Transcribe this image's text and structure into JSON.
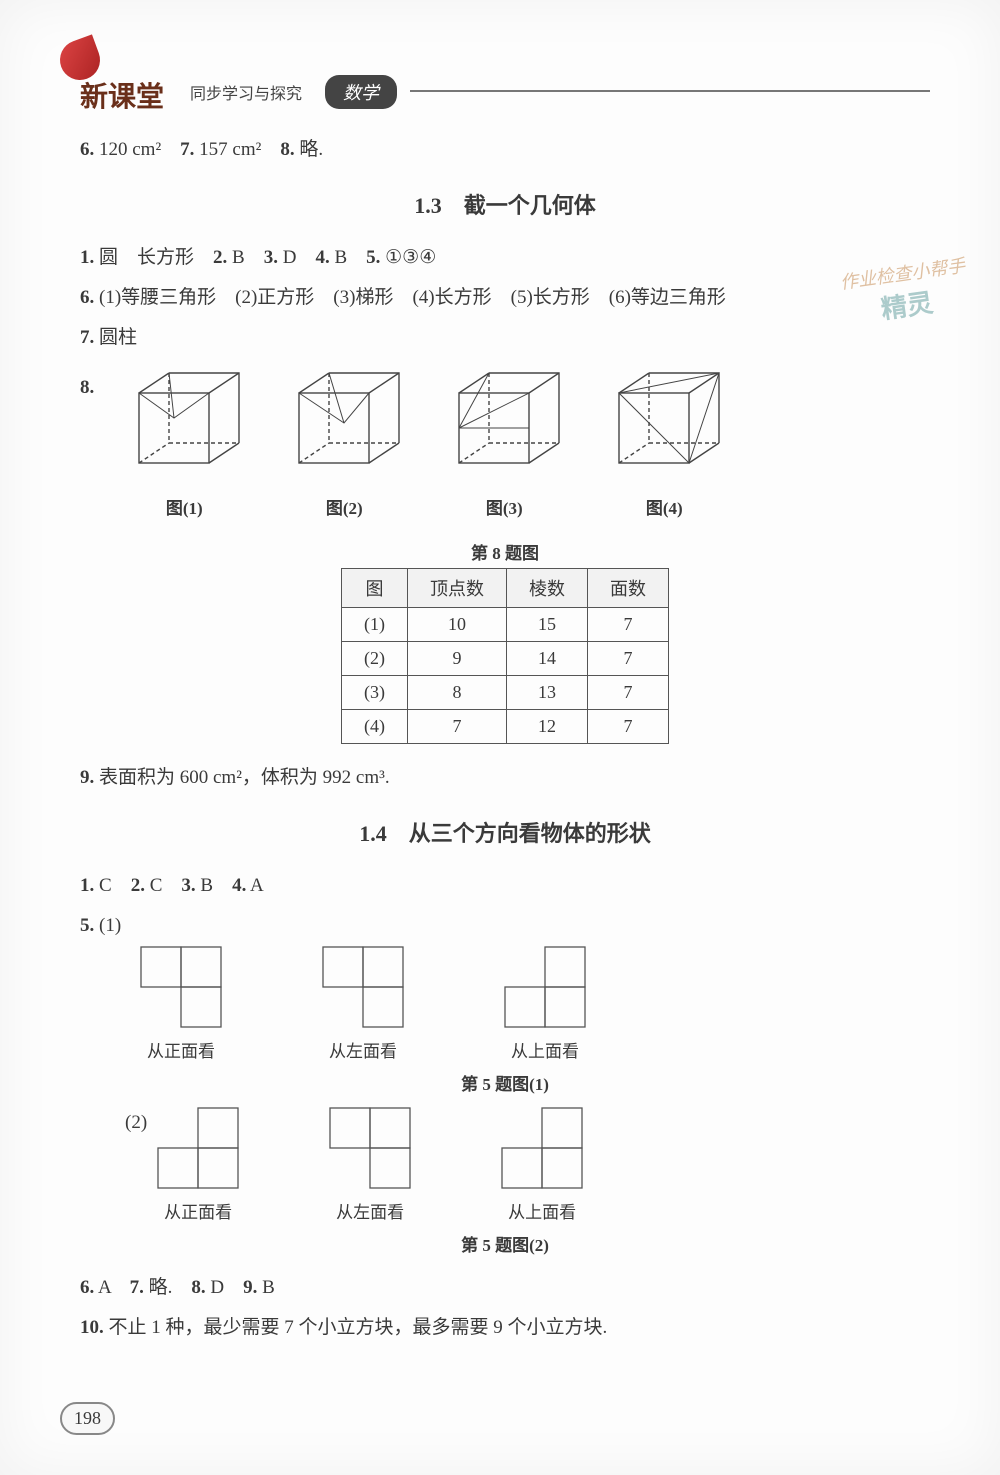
{
  "header": {
    "series_title": "新课堂",
    "series_sub": "同步学习与探究",
    "subject": "数学"
  },
  "watermark": {
    "line1": "作业检查小帮手",
    "line2": "精灵"
  },
  "page_number": "198",
  "top_line": {
    "items": [
      {
        "num": "6.",
        "ans": "120 cm²"
      },
      {
        "num": "7.",
        "ans": "157 cm²"
      },
      {
        "num": "8.",
        "ans": "略."
      }
    ]
  },
  "section_13": {
    "title": "1.3　截一个几何体",
    "line1": [
      {
        "num": "1.",
        "ans": "圆　长方形"
      },
      {
        "num": "2.",
        "ans": "B"
      },
      {
        "num": "3.",
        "ans": "D"
      },
      {
        "num": "4.",
        "ans": "B"
      },
      {
        "num": "5.",
        "ans": "①③④"
      }
    ],
    "line2_num": "6.",
    "line2_parts": [
      "(1)等腰三角形",
      "(2)正方形",
      "(3)梯形",
      "(4)长方形",
      "(5)长方形",
      "(6)等边三角形"
    ],
    "line3": {
      "num": "7.",
      "ans": "圆柱"
    },
    "q8_num": "8.",
    "figures": [
      {
        "cap": "图(1)",
        "svg_variant": 1
      },
      {
        "cap": "图(2)",
        "svg_variant": 2
      },
      {
        "cap": "图(3)",
        "svg_variant": 3
      },
      {
        "cap": "图(4)",
        "svg_variant": 4
      }
    ],
    "table": {
      "caption": "第 8 题图",
      "columns": [
        "图",
        "顶点数",
        "棱数",
        "面数"
      ],
      "rows": [
        [
          "(1)",
          "10",
          "15",
          "7"
        ],
        [
          "(2)",
          "9",
          "14",
          "7"
        ],
        [
          "(3)",
          "8",
          "13",
          "7"
        ],
        [
          "(4)",
          "7",
          "12",
          "7"
        ]
      ],
      "border_color": "#555",
      "header_bg": "#f2f2f2"
    },
    "q9": {
      "num": "9.",
      "ans": "表面积为 600 cm²，体积为 992 cm³."
    }
  },
  "section_14": {
    "title": "1.4　从三个方向看物体的形状",
    "line1": [
      {
        "num": "1.",
        "ans": "C"
      },
      {
        "num": "2.",
        "ans": "C"
      },
      {
        "num": "3.",
        "ans": "B"
      },
      {
        "num": "4.",
        "ans": "A"
      }
    ],
    "q5_num": "5.",
    "q5_part1": "(1)",
    "q5_part2": "(2)",
    "view_labels": {
      "front": "从正面看",
      "left": "从左面看",
      "top": "从上面看"
    },
    "fig5_cap1": "第 5 题图(1)",
    "fig5_cap2": "第 5 题图(2)",
    "views1": [
      {
        "cap_key": "front",
        "grid": [
          [
            0,
            0
          ],
          [
            1,
            0
          ],
          [
            1,
            1
          ]
        ]
      },
      {
        "cap_key": "left",
        "grid": [
          [
            0,
            0
          ],
          [
            1,
            0
          ],
          [
            1,
            1
          ]
        ]
      },
      {
        "cap_key": "top",
        "grid": [
          [
            0,
            1
          ],
          [
            1,
            0
          ],
          [
            1,
            1
          ]
        ]
      }
    ],
    "views2": [
      {
        "cap_key": "front",
        "grid": [
          [
            0,
            1
          ],
          [
            1,
            0
          ],
          [
            1,
            1
          ]
        ]
      },
      {
        "cap_key": "left",
        "grid": [
          [
            0,
            0
          ],
          [
            1,
            0
          ],
          [
            1,
            1
          ]
        ]
      },
      {
        "cap_key": "top",
        "grid": [
          [
            1,
            0
          ],
          [
            1,
            1
          ],
          [
            0,
            1
          ]
        ]
      }
    ],
    "line_after": [
      {
        "num": "6.",
        "ans": "A"
      },
      {
        "num": "7.",
        "ans": "略."
      },
      {
        "num": "8.",
        "ans": "D"
      },
      {
        "num": "9.",
        "ans": "B"
      }
    ],
    "q10": {
      "num": "10.",
      "ans": "不止 1 种，最少需要 7 个小立方块，最多需要 9 个小立方块."
    }
  },
  "styles": {
    "cube_stroke": "#444",
    "cube_dash": "4,3",
    "grid_cell": 40,
    "grid_stroke": "#555"
  }
}
